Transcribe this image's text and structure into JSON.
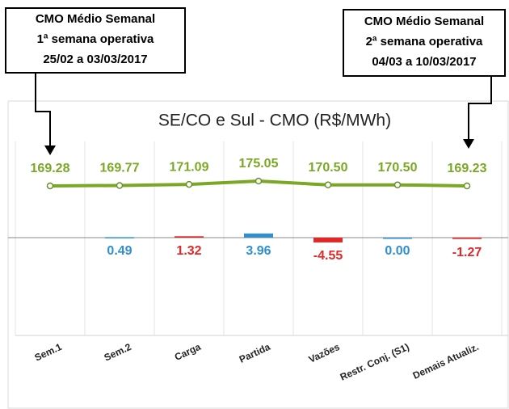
{
  "annotations": [
    [
      "CMO Médio Semanal",
      "1ª semana operativa",
      "25/02 a 03/03/2017"
    ],
    [
      "CMO Médio Semanal",
      "2ª semana operativa",
      "04/03 a 10/03/2017"
    ]
  ],
  "chart_data": [
    {
      "type": "line",
      "title": "SE/CO e Sul -  CMO (R$/MWh)",
      "categories": [
        "Sem.1",
        "Sem.2",
        "Carga",
        "Partida",
        "Vazões",
        "Restr. Conj. (S1)",
        "Demais Atualiz."
      ],
      "values": [
        169.28,
        169.77,
        171.09,
        175.05,
        170.5,
        170.5,
        169.23
      ],
      "value_labels": [
        "169.28",
        "169.77",
        "171.09",
        "175.05",
        "170.50",
        "170.50",
        "169.23"
      ],
      "color": "#7aa825",
      "grid": true
    },
    {
      "type": "bar",
      "values": [
        null,
        0.49,
        1.32,
        3.96,
        -4.55,
        0.0,
        -1.27
      ],
      "value_labels": [
        null,
        "0.49",
        "1.32",
        "3.96",
        "-4.55",
        "0.00",
        "-1.27"
      ],
      "colors": [
        null,
        "#2f8fd1",
        "#e02828",
        "#2f8fd1",
        "#e02828",
        "#2f8fd1",
        "#e02828"
      ]
    }
  ]
}
